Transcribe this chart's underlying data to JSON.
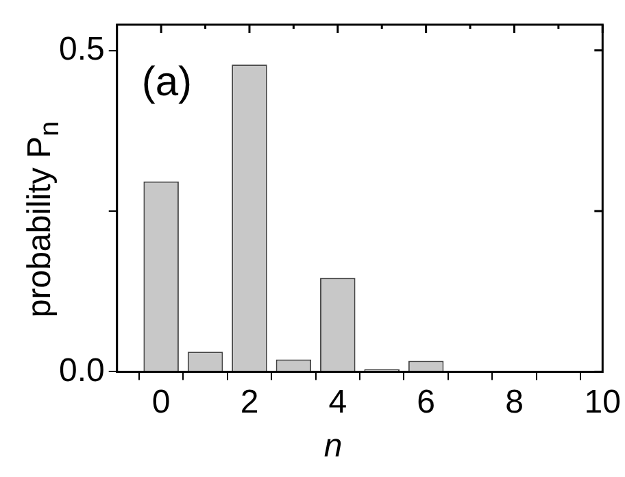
{
  "chart_data": {
    "type": "bar",
    "xlabel": "n",
    "ylabel": "probability  P$_{n}$",
    "annotations": [
      "(a)"
    ],
    "x": [
      0,
      1,
      2,
      3,
      4,
      5,
      6
    ],
    "values": [
      0.296,
      0.031,
      0.478,
      0.019,
      0.146,
      0.004,
      0.017
    ],
    "color": "#c8c8c8",
    "xlim": [
      -1,
      10
    ],
    "xticks": [
      0,
      {
        "value": 1,
        "label": null
      },
      2,
      {
        "value": 3,
        "label": null
      },
      4,
      {
        "value": 5,
        "label": null
      },
      6,
      {
        "value": 7,
        "label": null
      },
      8,
      {
        "value": 9,
        "label": null
      },
      10
    ],
    "ylim": [
      0,
      0.54
    ],
    "yticks": [
      {
        "value": 0,
        "label": "0.0"
      },
      {
        "value": 0.25,
        "label": null
      },
      0.5
    ],
    "grid": false,
    "legend": false
  }
}
